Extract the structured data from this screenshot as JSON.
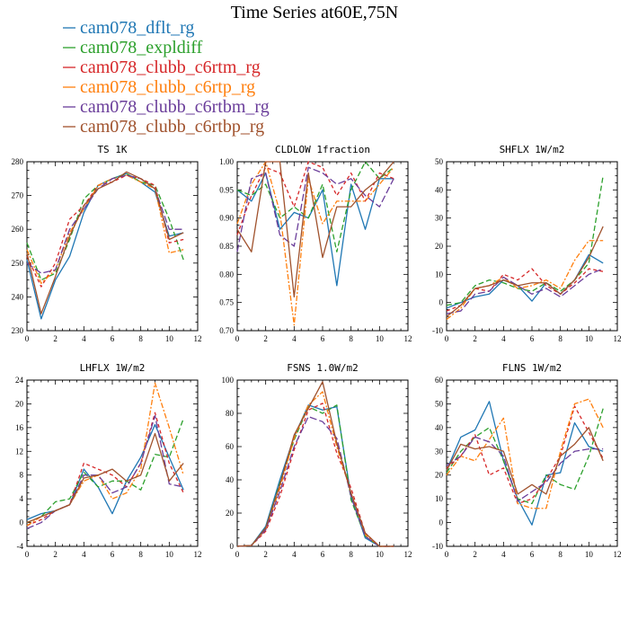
{
  "title": "Time Series at60E,75N",
  "legend": [
    {
      "name": "cam078_dflt_rg",
      "color": "#1f77b4"
    },
    {
      "name": "cam078_expldiff",
      "color": "#2ca02c"
    },
    {
      "name": "cam078_clubb_c6rtm_rg",
      "color": "#d62728"
    },
    {
      "name": "cam078_clubb_c6rtp_rg",
      "color": "#ff7f0e"
    },
    {
      "name": "cam078_clubb_c6rtbm_rg",
      "color": "#6a3d9a"
    },
    {
      "name": "cam078_clubb_c6rtbp_rg",
      "color": "#a0522d"
    }
  ],
  "chart_data": [
    {
      "type": "line",
      "title": "TS  1K",
      "x": [
        0,
        1,
        2,
        3,
        4,
        5,
        6,
        7,
        8,
        9,
        10,
        11
      ],
      "xlim": [
        0,
        12
      ],
      "xticks": [
        "0",
        "2",
        "4",
        "6",
        "8",
        "10",
        "12"
      ],
      "ylim": [
        230,
        280
      ],
      "yticks": [
        "230",
        "240",
        "250",
        "260",
        "270",
        "280"
      ],
      "series": [
        {
          "name": "cam078_dflt_rg",
          "values": [
            251,
            233.5,
            245,
            252,
            265,
            273,
            275,
            276.5,
            274,
            271,
            258,
            259
          ]
        },
        {
          "name": "cam078_expldiff",
          "values": [
            256,
            245,
            247,
            257,
            269,
            273,
            275,
            276.5,
            274,
            273,
            263,
            251
          ]
        },
        {
          "name": "cam078_clubb_c6rtm_rg",
          "values": [
            252,
            243,
            250,
            263,
            267,
            273,
            274,
            276,
            275,
            273,
            256,
            257
          ]
        },
        {
          "name": "cam078_clubb_c6rtp_rg",
          "values": [
            254,
            244,
            248,
            259,
            266,
            273,
            275,
            276,
            274,
            272,
            253,
            254
          ]
        },
        {
          "name": "cam078_clubb_c6rtbm_rg",
          "values": [
            250,
            247,
            248,
            260,
            266,
            272,
            275,
            276,
            275,
            272,
            260,
            260
          ]
        },
        {
          "name": "cam078_clubb_c6rtbp_rg",
          "values": [
            253,
            235,
            246,
            258,
            267,
            272,
            274,
            277,
            275,
            272,
            257,
            259
          ]
        }
      ]
    },
    {
      "type": "line",
      "title": "CLDLOW  1fraction",
      "x": [
        0,
        1,
        2,
        3,
        4,
        5,
        6,
        7,
        8,
        9,
        10,
        11
      ],
      "xlim": [
        0,
        12
      ],
      "xticks": [
        "0",
        "2",
        "4",
        "6",
        "8",
        "10",
        "12"
      ],
      "ylim": [
        0.7,
        1.0
      ],
      "yticks": [
        "0.70",
        "0.75",
        "0.80",
        "0.85",
        "0.90",
        "0.95",
        "1.00"
      ],
      "series": [
        {
          "name": "cam078_dflt_rg",
          "values": [
            0.95,
            0.93,
            0.98,
            0.88,
            0.91,
            0.9,
            0.95,
            0.78,
            0.96,
            0.88,
            0.97,
            0.97
          ]
        },
        {
          "name": "cam078_expldiff",
          "values": [
            0.95,
            0.94,
            0.96,
            0.9,
            0.92,
            0.9,
            0.96,
            0.84,
            0.95,
            1.0,
            0.97,
            0.99
          ]
        },
        {
          "name": "cam078_clubb_c6rtm_rg",
          "values": [
            0.87,
            0.94,
            0.99,
            0.98,
            0.92,
            1.0,
            0.99,
            0.94,
            0.98,
            0.93,
            0.98,
            0.97
          ]
        },
        {
          "name": "cam078_clubb_c6rtp_rg",
          "values": [
            0.89,
            0.96,
            1.0,
            0.91,
            0.71,
            0.97,
            0.89,
            0.93,
            0.93,
            0.93,
            0.96,
            0.99
          ]
        },
        {
          "name": "cam078_clubb_c6rtbm_rg",
          "values": [
            0.84,
            0.97,
            0.98,
            0.87,
            0.85,
            0.99,
            0.98,
            0.96,
            0.97,
            0.94,
            0.92,
            0.97
          ]
        },
        {
          "name": "cam078_clubb_c6rtbp_rg",
          "values": [
            0.88,
            0.84,
            1.0,
            1.0,
            0.76,
            0.98,
            0.83,
            0.92,
            0.92,
            0.95,
            0.97,
            1.0
          ]
        }
      ]
    },
    {
      "type": "line",
      "title": "SHFLX  1W/m2",
      "x": [
        0,
        1,
        2,
        3,
        4,
        5,
        6,
        7,
        8,
        9,
        10,
        11
      ],
      "xlim": [
        0,
        12
      ],
      "xticks": [
        "0",
        "2",
        "4",
        "6",
        "8",
        "10",
        "12"
      ],
      "ylim": [
        -10,
        50
      ],
      "yticks": [
        "-10",
        "0",
        "10",
        "20",
        "30",
        "40",
        "50"
      ],
      "series": [
        {
          "name": "cam078_dflt_rg",
          "values": [
            -2,
            0,
            2,
            3,
            8,
            6,
            0.5,
            7,
            3,
            8,
            17,
            14
          ]
        },
        {
          "name": "cam078_expldiff",
          "values": [
            -1,
            0,
            6,
            8,
            7,
            5,
            4,
            7,
            4,
            8,
            14,
            45
          ]
        },
        {
          "name": "cam078_clubb_c6rtm_rg",
          "values": [
            -3,
            -1,
            5,
            4,
            10,
            8,
            12,
            6,
            3,
            7,
            12,
            11
          ]
        },
        {
          "name": "cam078_clubb_c6rtp_rg",
          "values": [
            -6,
            -2,
            5,
            6,
            9,
            5,
            6,
            8,
            5,
            15,
            22,
            22
          ]
        },
        {
          "name": "cam078_clubb_c6rtbm_rg",
          "values": [
            -4,
            -3,
            3,
            4,
            9,
            6,
            3,
            5,
            2,
            6,
            10,
            12
          ]
        },
        {
          "name": "cam078_clubb_c6rtbp_rg",
          "values": [
            -5,
            -1,
            5,
            6,
            8,
            6,
            7,
            7,
            3,
            8,
            16,
            27
          ]
        }
      ]
    },
    {
      "type": "line",
      "title": "LHFLX  1W/m2",
      "x": [
        0,
        1,
        2,
        3,
        4,
        5,
        6,
        7,
        8,
        9,
        10,
        11
      ],
      "xlim": [
        0,
        12
      ],
      "xticks": [
        "0",
        "2",
        "4",
        "6",
        "8",
        "10",
        "12"
      ],
      "ylim": [
        -4,
        24
      ],
      "yticks": [
        "-4",
        "0",
        "4",
        "8",
        "12",
        "16",
        "20",
        "24"
      ],
      "series": [
        {
          "name": "cam078_dflt_rg",
          "values": [
            0.5,
            1.5,
            2,
            3,
            9,
            6,
            1.5,
            7,
            11,
            16.5,
            11,
            5.5
          ]
        },
        {
          "name": "cam078_expldiff",
          "values": [
            0,
            1,
            3.5,
            4,
            8.5,
            6,
            7,
            7,
            5.5,
            11.5,
            11,
            17.5
          ]
        },
        {
          "name": "cam078_clubb_c6rtm_rg",
          "values": [
            -0.5,
            0.5,
            2,
            3,
            10,
            9,
            8,
            6,
            10,
            18.5,
            10,
            5
          ]
        },
        {
          "name": "cam078_clubb_c6rtp_rg",
          "values": [
            -0.5,
            1,
            2,
            3,
            7,
            8,
            4,
            5,
            9,
            23.5,
            16,
            8
          ]
        },
        {
          "name": "cam078_clubb_c6rtbm_rg",
          "values": [
            -1,
            0,
            2,
            3,
            8,
            8,
            5,
            6,
            10,
            18,
            6.5,
            6
          ]
        },
        {
          "name": "cam078_clubb_c6rtbp_rg",
          "values": [
            0,
            1,
            2,
            3,
            7.5,
            8,
            9,
            7,
            8,
            15,
            7,
            10
          ]
        }
      ]
    },
    {
      "type": "line",
      "title": "FSNS  1.0W/m2",
      "x": [
        0,
        1,
        2,
        3,
        4,
        5,
        6,
        7,
        8,
        9,
        10,
        11
      ],
      "xlim": [
        0,
        12
      ],
      "xticks": [
        "0",
        "2",
        "4",
        "6",
        "8",
        "10",
        "12"
      ],
      "ylim": [
        0,
        100
      ],
      "yticks": [
        "0",
        "20",
        "40",
        "60",
        "80",
        "100"
      ],
      "series": [
        {
          "name": "cam078_dflt_rg",
          "values": [
            0,
            0.5,
            12,
            40,
            66,
            85,
            82,
            84,
            30,
            5,
            0,
            0
          ]
        },
        {
          "name": "cam078_expldiff",
          "values": [
            0,
            0.5,
            11,
            38,
            64,
            84,
            80,
            85,
            28,
            6,
            0,
            0
          ]
        },
        {
          "name": "cam078_clubb_c6rtm_rg",
          "values": [
            0,
            0.5,
            9,
            30,
            58,
            82,
            86,
            56,
            35,
            8,
            0,
            0
          ]
        },
        {
          "name": "cam078_clubb_c6rtp_rg",
          "values": [
            0,
            0.5,
            10,
            35,
            65,
            85,
            93,
            60,
            32,
            7,
            0,
            0
          ]
        },
        {
          "name": "cam078_clubb_c6rtbm_rg",
          "values": [
            0,
            0.5,
            10,
            33,
            60,
            78,
            75,
            65,
            30,
            6,
            0,
            0
          ]
        },
        {
          "name": "cam078_clubb_c6rtbp_rg",
          "values": [
            0,
            0.5,
            11,
            37,
            67,
            83,
            99,
            62,
            32,
            8,
            0,
            0
          ]
        }
      ]
    },
    {
      "type": "line",
      "title": "FLNS  1W/m2",
      "x": [
        0,
        1,
        2,
        3,
        4,
        5,
        6,
        7,
        8,
        9,
        10,
        11
      ],
      "xlim": [
        0,
        12
      ],
      "xticks": [
        "0",
        "2",
        "4",
        "6",
        "8",
        "10",
        "12"
      ],
      "ylim": [
        -10,
        60
      ],
      "yticks": [
        "-10",
        "0",
        "10",
        "20",
        "30",
        "40",
        "50",
        "60"
      ],
      "series": [
        {
          "name": "cam078_dflt_rg",
          "values": [
            22,
            36,
            39,
            51,
            26,
            10,
            -1,
            20,
            21,
            42,
            32,
            30
          ]
        },
        {
          "name": "cam078_expldiff",
          "values": [
            21,
            30,
            36,
            40,
            26,
            10,
            8,
            20,
            16,
            14,
            28,
            48
          ]
        },
        {
          "name": "cam078_clubb_c6rtm_rg",
          "values": [
            23,
            28,
            37,
            20,
            23,
            8,
            10,
            18,
            28,
            49,
            38,
            27
          ]
        },
        {
          "name": "cam078_clubb_c6rtp_rg",
          "values": [
            20,
            28,
            26,
            35,
            44,
            8,
            6,
            6,
            30,
            50,
            52,
            40
          ]
        },
        {
          "name": "cam078_clubb_c6rtbm_rg",
          "values": [
            24,
            28,
            36,
            34,
            28,
            9,
            13,
            17,
            25,
            30,
            31,
            31
          ]
        },
        {
          "name": "cam078_clubb_c6rtbp_rg",
          "values": [
            22,
            33,
            31,
            32,
            30,
            12,
            16,
            12,
            28,
            33,
            40,
            26
          ]
        }
      ]
    }
  ]
}
